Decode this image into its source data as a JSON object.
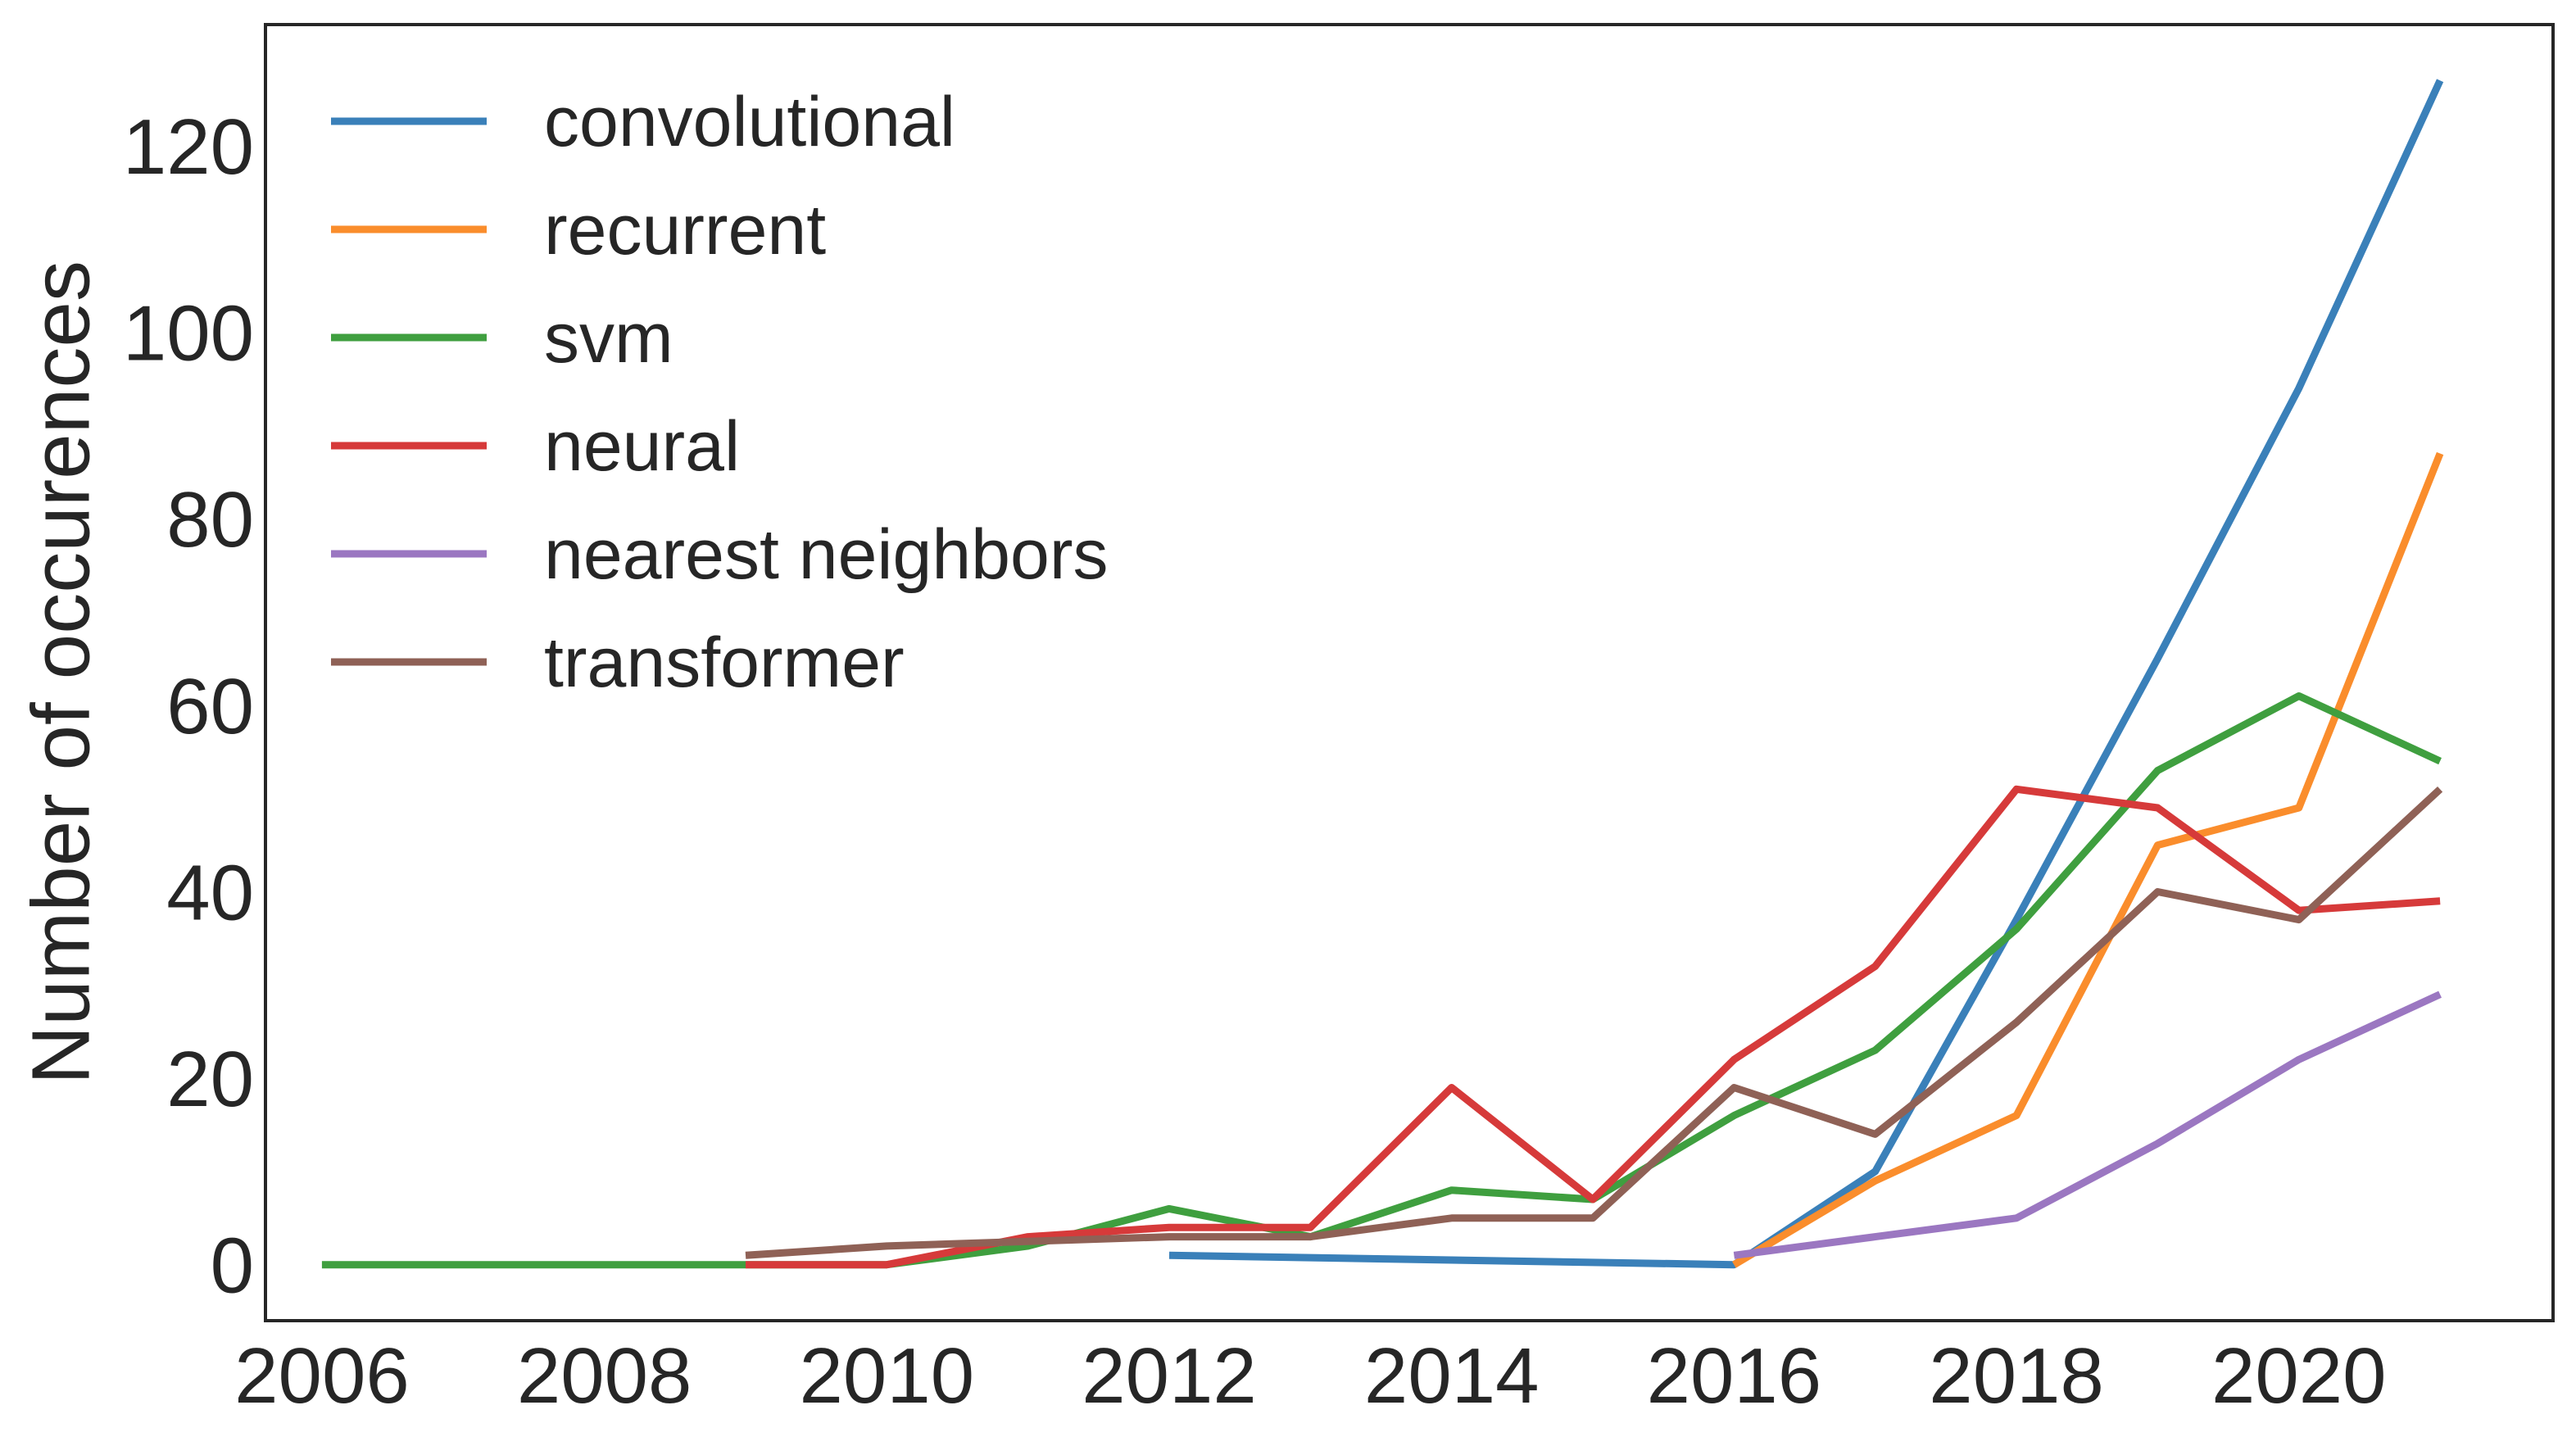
{
  "chart_data": {
    "type": "line",
    "title": "",
    "xlabel": "",
    "ylabel": "Number of occurences",
    "xlim": [
      2005.6,
      2021.8
    ],
    "ylim": [
      -6,
      133
    ],
    "xticks": [
      2006,
      2008,
      2010,
      2012,
      2014,
      2016,
      2018,
      2020
    ],
    "yticks": [
      0,
      20,
      40,
      60,
      80,
      100,
      120
    ],
    "grid": false,
    "legend_position": "top-left",
    "series": [
      {
        "name": "convolutional",
        "color": "#3a80b9",
        "points": [
          [
            2012,
            1
          ],
          [
            2016,
            0
          ],
          [
            2017,
            10
          ],
          [
            2018,
            37
          ],
          [
            2019,
            65
          ],
          [
            2020,
            94
          ],
          [
            2021,
            127
          ]
        ]
      },
      {
        "name": "recurrent",
        "color": "#fa8d2c",
        "points": [
          [
            2016,
            0
          ],
          [
            2017,
            9
          ],
          [
            2018,
            16
          ],
          [
            2019,
            45
          ],
          [
            2020,
            49
          ],
          [
            2021,
            87
          ]
        ]
      },
      {
        "name": "svm",
        "color": "#3f9f3f",
        "points": [
          [
            2006,
            0
          ],
          [
            2007,
            0
          ],
          [
            2008,
            0
          ],
          [
            2009,
            0
          ],
          [
            2010,
            0
          ],
          [
            2011,
            2
          ],
          [
            2012,
            6
          ],
          [
            2013,
            3
          ],
          [
            2014,
            8
          ],
          [
            2015,
            7
          ],
          [
            2016,
            16
          ],
          [
            2017,
            23
          ],
          [
            2018,
            36
          ],
          [
            2019,
            53
          ],
          [
            2020,
            61
          ],
          [
            2021,
            54
          ]
        ]
      },
      {
        "name": "neural",
        "color": "#d63a3a",
        "points": [
          [
            2009,
            0
          ],
          [
            2010,
            0
          ],
          [
            2011,
            3
          ],
          [
            2012,
            4
          ],
          [
            2013,
            4
          ],
          [
            2014,
            19
          ],
          [
            2015,
            7
          ],
          [
            2016,
            22
          ],
          [
            2017,
            32
          ],
          [
            2018,
            51
          ],
          [
            2019,
            49
          ],
          [
            2020,
            38
          ],
          [
            2021,
            39
          ]
        ]
      },
      {
        "name": "nearest neighbors",
        "color": "#9b77c1",
        "points": [
          [
            2016,
            1
          ],
          [
            2017,
            3
          ],
          [
            2018,
            5
          ],
          [
            2019,
            13
          ],
          [
            2020,
            22
          ],
          [
            2021,
            29
          ]
        ]
      },
      {
        "name": "transformer",
        "color": "#8f6156",
        "points": [
          [
            2009,
            1
          ],
          [
            2010,
            2
          ],
          [
            2011,
            2.5
          ],
          [
            2012,
            3
          ],
          [
            2013,
            3
          ],
          [
            2014,
            5
          ],
          [
            2015,
            5
          ],
          [
            2016,
            19
          ],
          [
            2017,
            14
          ],
          [
            2018,
            26
          ],
          [
            2019,
            40
          ],
          [
            2020,
            37
          ],
          [
            2021,
            51
          ]
        ]
      }
    ]
  }
}
